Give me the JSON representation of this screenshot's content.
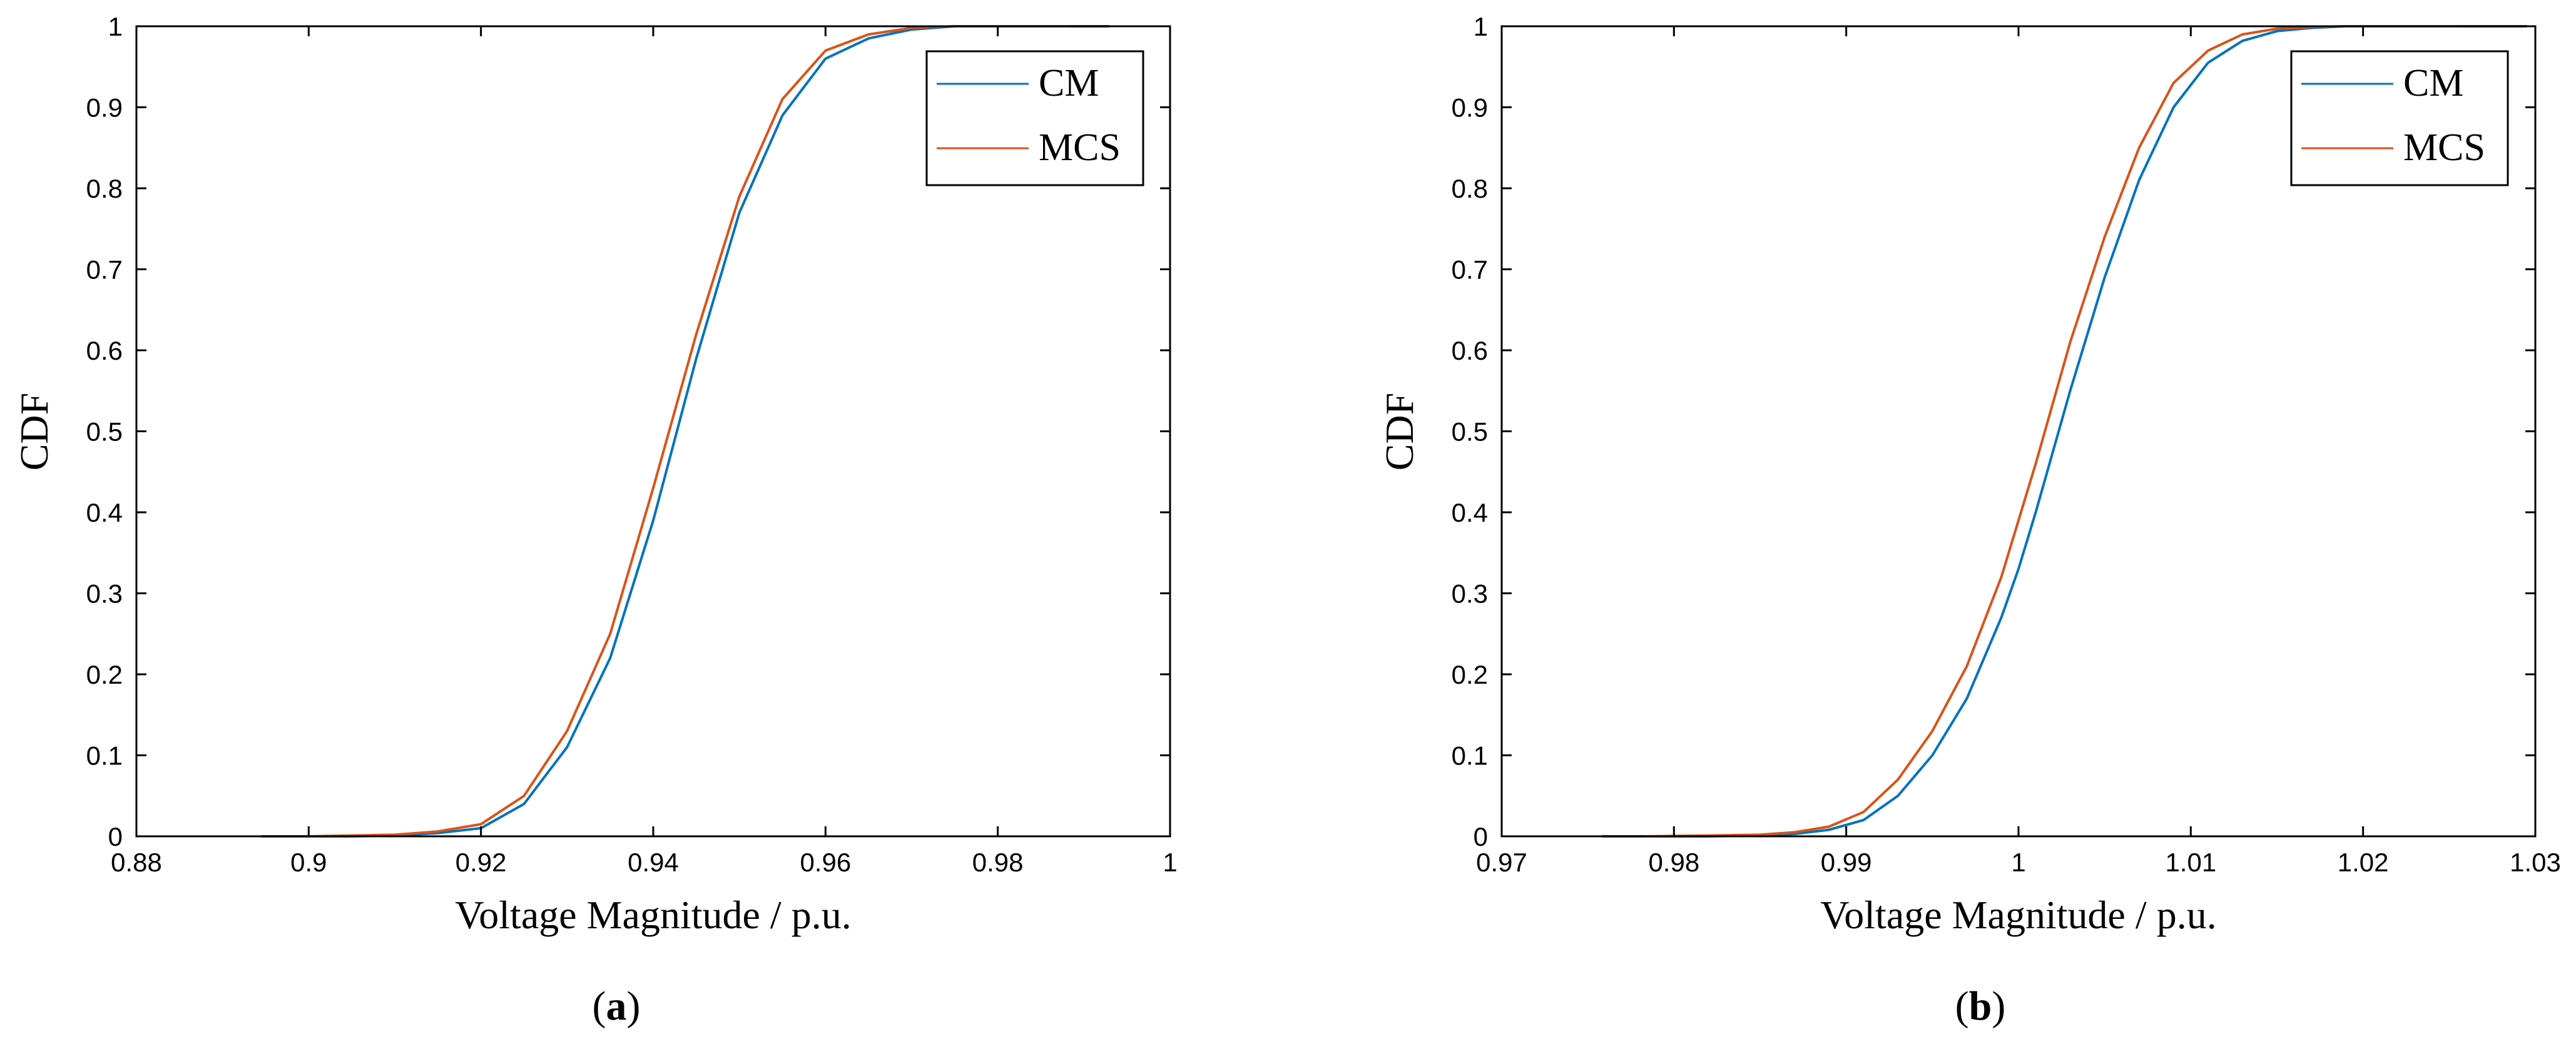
{
  "chart_data": [
    {
      "type": "line",
      "panel_label": "a",
      "xlabel": "Voltage Magnitude / p.u.",
      "ylabel": "CDF",
      "xlim": [
        0.88,
        1.0
      ],
      "ylim": [
        0,
        1
      ],
      "xticks": [
        0.88,
        0.9,
        0.92,
        0.94,
        0.96,
        0.98,
        1
      ],
      "xtick_labels": [
        "0.88",
        "0.9",
        "0.92",
        "0.94",
        "0.96",
        "0.98",
        "1"
      ],
      "yticks": [
        0,
        0.1,
        0.2,
        0.3,
        0.4,
        0.5,
        0.6,
        0.7,
        0.8,
        0.9,
        1
      ],
      "ytick_labels": [
        "0",
        "0.1",
        "0.2",
        "0.3",
        "0.4",
        "0.5",
        "0.6",
        "0.7",
        "0.8",
        "0.9",
        "1"
      ],
      "grid": false,
      "legend_position": "top-right",
      "series": [
        {
          "name": "CM",
          "color": "#0072BD",
          "x": [
            0.8945,
            0.905,
            0.91,
            0.915,
            0.92,
            0.925,
            0.93,
            0.935,
            0.94,
            0.945,
            0.95,
            0.955,
            0.96,
            0.965,
            0.97,
            0.975,
            0.98,
            0.985,
            0.99,
            0.993
          ],
          "y": [
            0,
            0,
            0.001,
            0.004,
            0.01,
            0.04,
            0.11,
            0.22,
            0.39,
            0.59,
            0.77,
            0.89,
            0.96,
            0.985,
            0.996,
            1,
            1,
            1,
            1,
            1
          ]
        },
        {
          "name": "MCS",
          "color": "#D95319",
          "x": [
            0.9,
            0.905,
            0.91,
            0.915,
            0.92,
            0.925,
            0.93,
            0.935,
            0.94,
            0.945,
            0.95,
            0.955,
            0.96,
            0.965,
            0.97,
            0.975,
            0.98,
            0.985,
            0.9885
          ],
          "y": [
            0,
            0.001,
            0.002,
            0.006,
            0.015,
            0.05,
            0.13,
            0.25,
            0.43,
            0.62,
            0.79,
            0.91,
            0.97,
            0.99,
            0.998,
            1,
            1,
            1,
            1
          ]
        }
      ]
    },
    {
      "type": "line",
      "panel_label": "b",
      "xlabel": "Voltage Magnitude / p.u.",
      "ylabel": "CDF",
      "xlim": [
        0.97,
        1.03
      ],
      "ylim": [
        0,
        1
      ],
      "xticks": [
        0.97,
        0.98,
        0.99,
        1,
        1.01,
        1.02,
        1.03
      ],
      "xtick_labels": [
        "0.97",
        "0.98",
        "0.99",
        "1",
        "1.01",
        "1.02",
        "1.03"
      ],
      "yticks": [
        0,
        0.1,
        0.2,
        0.3,
        0.4,
        0.5,
        0.6,
        0.7,
        0.8,
        0.9,
        1
      ],
      "ytick_labels": [
        "0",
        "0.1",
        "0.2",
        "0.3",
        "0.4",
        "0.5",
        "0.6",
        "0.7",
        "0.8",
        "0.9",
        "1"
      ],
      "grid": false,
      "legend_position": "top-right",
      "series": [
        {
          "name": "CM",
          "color": "#0072BD",
          "x": [
            0.9758,
            0.982,
            0.985,
            0.987,
            0.989,
            0.991,
            0.993,
            0.995,
            0.997,
            0.999,
            1.0,
            1.001,
            1.003,
            1.005,
            1.007,
            1.009,
            1.011,
            1.013,
            1.015,
            1.017,
            1.019,
            1.022,
            1.025,
            1.0295
          ],
          "y": [
            0,
            0,
            0.001,
            0.003,
            0.008,
            0.02,
            0.05,
            0.1,
            0.17,
            0.27,
            0.33,
            0.4,
            0.55,
            0.69,
            0.81,
            0.9,
            0.955,
            0.982,
            0.994,
            0.998,
            1,
            1,
            1,
            1
          ]
        },
        {
          "name": "MCS",
          "color": "#D95319",
          "x": [
            0.9783,
            0.982,
            0.985,
            0.987,
            0.989,
            0.991,
            0.993,
            0.995,
            0.997,
            0.999,
            1.0,
            1.001,
            1.003,
            1.005,
            1.007,
            1.009,
            1.011,
            1.013,
            1.015,
            1.017,
            1.019,
            1.022,
            1.0255
          ],
          "y": [
            0,
            0.001,
            0.002,
            0.005,
            0.012,
            0.03,
            0.07,
            0.13,
            0.21,
            0.32,
            0.39,
            0.46,
            0.61,
            0.74,
            0.85,
            0.93,
            0.97,
            0.99,
            0.997,
            0.999,
            1,
            1,
            1
          ]
        }
      ]
    }
  ]
}
